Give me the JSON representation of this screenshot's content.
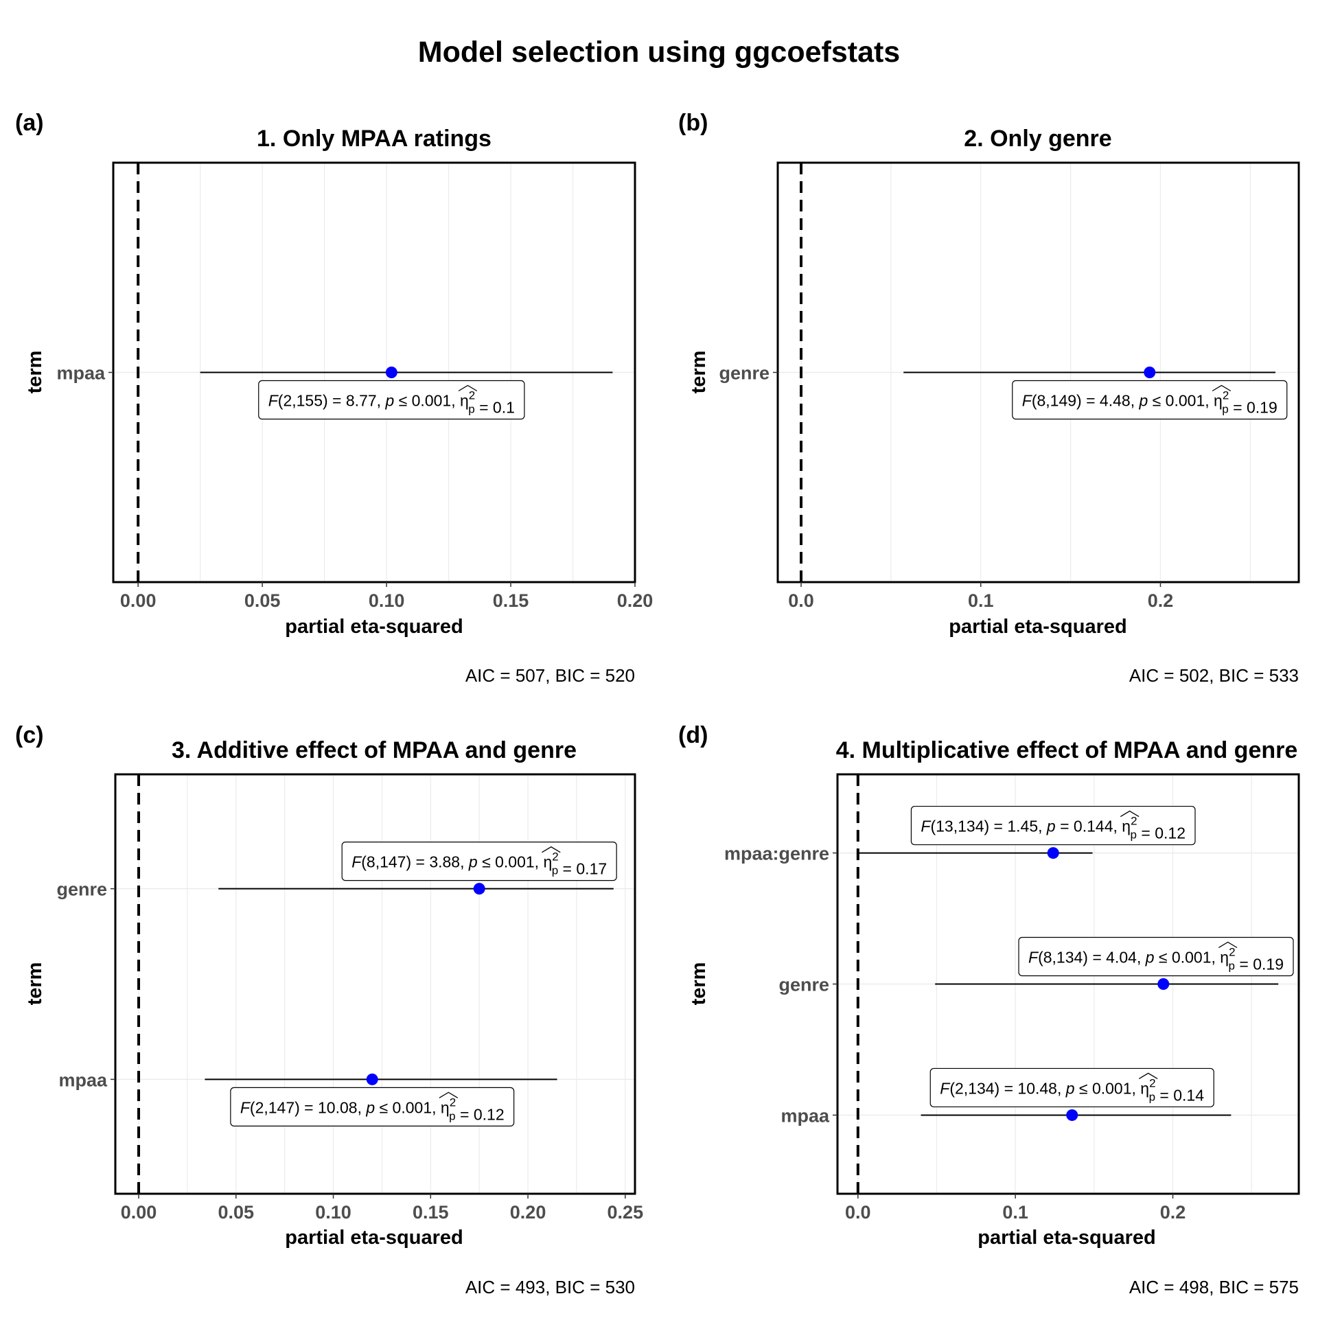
{
  "figure": {
    "title": "Model selection using ggcoefstats",
    "colors": {
      "point": "#0000ff",
      "grid": "#ebebeb",
      "frame": "#000000",
      "tick_text": "#4d4d4d"
    }
  },
  "chart_data": [
    {
      "type": "scatter",
      "tag": "(a)",
      "title": "1. Only MPAA ratings",
      "xlabel": "partial eta-squared",
      "ylabel": "term",
      "caption": "AIC = 507, BIC = 520",
      "xlim": [
        -0.01,
        0.2
      ],
      "xticks": [
        0.0,
        0.05,
        0.1,
        0.15,
        0.2
      ],
      "xtick_labels": [
        "0.00",
        "0.05",
        "0.10",
        "0.15",
        "0.20"
      ],
      "terms": [
        "mpaa"
      ],
      "estimates": [
        0.102
      ],
      "ci_low": [
        0.025
      ],
      "ci_high": [
        0.191
      ],
      "stats": [
        {
          "F": "F",
          "df": "(2,155)",
          "F_value": " = 8.77, ",
          "p": "p",
          "p_value": " ≤ 0.001, ",
          "eta": "η",
          "eta_sub": "p",
          "eta_sup": "2",
          "eta_value": " = 0.1",
          "label_side": "below"
        }
      ],
      "reference_line": 0,
      "grid": true
    },
    {
      "type": "scatter",
      "tag": "(b)",
      "title": "2. Only genre",
      "xlabel": "partial eta-squared",
      "ylabel": "term",
      "caption": "AIC = 502, BIC = 533",
      "xlim": [
        -0.013,
        0.277
      ],
      "xticks": [
        0.0,
        0.1,
        0.2
      ],
      "xtick_labels": [
        "0.0",
        "0.1",
        "0.2"
      ],
      "terms": [
        "genre"
      ],
      "estimates": [
        0.194
      ],
      "ci_low": [
        0.057
      ],
      "ci_high": [
        0.264
      ],
      "stats": [
        {
          "F": "F",
          "df": "(8,149)",
          "F_value": " = 4.48, ",
          "p": "p",
          "p_value": " ≤ 0.001, ",
          "eta": "η",
          "eta_sub": "p",
          "eta_sup": "2",
          "eta_value": " = 0.19",
          "label_side": "below"
        }
      ],
      "reference_line": 0,
      "grid": true
    },
    {
      "type": "scatter",
      "tag": "(c)",
      "title": "3. Additive effect of MPAA and genre",
      "xlabel": "partial eta-squared",
      "ylabel": "term",
      "caption": "AIC = 493, BIC = 530",
      "xlim": [
        -0.012,
        0.255
      ],
      "xticks": [
        0.0,
        0.05,
        0.1,
        0.15,
        0.2,
        0.25
      ],
      "xtick_labels": [
        "0.00",
        "0.05",
        "0.10",
        "0.15",
        "0.20",
        "0.25"
      ],
      "terms": [
        "mpaa",
        "genre"
      ],
      "estimates": [
        0.12,
        0.175
      ],
      "ci_low": [
        0.034,
        0.041
      ],
      "ci_high": [
        0.215,
        0.244
      ],
      "stats": [
        {
          "F": "F",
          "df": "(2,147)",
          "F_value": " = 10.08, ",
          "p": "p",
          "p_value": " ≤ 0.001, ",
          "eta": "η",
          "eta_sub": "p",
          "eta_sup": "2",
          "eta_value": " = 0.12",
          "label_side": "below"
        },
        {
          "F": "F",
          "df": "(8,147)",
          "F_value": " = 3.88, ",
          "p": "p",
          "p_value": " ≤ 0.001, ",
          "eta": "η",
          "eta_sub": "p",
          "eta_sup": "2",
          "eta_value": " = 0.17",
          "label_side": "above"
        }
      ],
      "reference_line": 0,
      "grid": true
    },
    {
      "type": "scatter",
      "tag": "(d)",
      "title": "4. Multiplicative effect of MPAA and genre",
      "xlabel": "partial eta-squared",
      "ylabel": "term",
      "caption": "AIC = 498, BIC = 575",
      "xlim": [
        -0.013,
        0.28
      ],
      "xticks": [
        0.0,
        0.1,
        0.2
      ],
      "xtick_labels": [
        "0.0",
        "0.1",
        "0.2"
      ],
      "terms": [
        "mpaa",
        "genre",
        "mpaa:genre"
      ],
      "estimates": [
        0.136,
        0.194,
        0.124
      ],
      "ci_low": [
        0.04,
        0.049,
        0.0
      ],
      "ci_high": [
        0.237,
        0.267,
        0.149
      ],
      "stats": [
        {
          "F": "F",
          "df": "(2,134)",
          "F_value": " = 10.48, ",
          "p": "p",
          "p_value": " ≤ 0.001, ",
          "eta": "η",
          "eta_sub": "p",
          "eta_sup": "2",
          "eta_value": " = 0.14",
          "label_side": "above"
        },
        {
          "F": "F",
          "df": "(8,134)",
          "F_value": " = 4.04, ",
          "p": "p",
          "p_value": " ≤ 0.001, ",
          "eta": "η",
          "eta_sub": "p",
          "eta_sup": "2",
          "eta_value": " = 0.19",
          "label_side": "above"
        },
        {
          "F": "F",
          "df": "(13,134)",
          "F_value": " = 1.45, ",
          "p": "p",
          "p_value": " = 0.144, ",
          "eta": "η",
          "eta_sub": "p",
          "eta_sup": "2",
          "eta_value": " = 0.12",
          "label_side": "above"
        }
      ],
      "reference_line": 0,
      "grid": true
    }
  ]
}
